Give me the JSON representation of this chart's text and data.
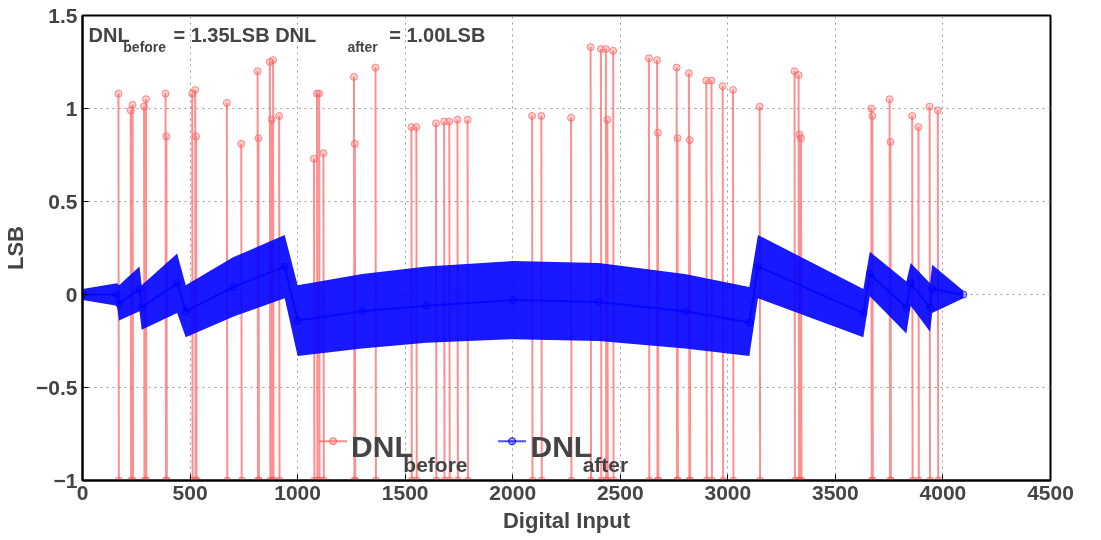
{
  "chart_data": {
    "type": "line",
    "xlabel": "Digital Input",
    "ylabel": "LSB",
    "annotations": [
      "DNL$_{before}$ = 1.35LSB  DNL$_{after}$ = 1.00LSB"
    ],
    "xlim": [
      0,
      4500
    ],
    "xticks": [
      0,
      500,
      1000,
      1500,
      2000,
      2500,
      3000,
      3500,
      4000,
      4500
    ],
    "ylim": [
      -1,
      1.5
    ],
    "yticks": [
      -1,
      -0.5,
      0,
      0.5,
      1,
      1.5
    ],
    "grid": true,
    "legend": "bottom",
    "marker": "circle",
    "line_style": "solid",
    "series": [
      {
        "name": "DNL$_{before}$",
        "color": "#ff6060",
        "x": [
          167,
          169,
          170,
          224,
          226,
          227,
          233,
          235,
          236,
          286,
          288,
          289,
          295,
          297,
          298,
          386,
          388,
          389,
          390,
          392,
          393,
          510,
          512,
          513,
          524,
          526,
          527,
          528,
          530,
          531,
          671,
          673,
          674,
          738,
          740,
          741,
          814,
          816,
          817,
          818,
          820,
          821,
          871,
          873,
          874,
          880,
          882,
          883,
          886,
          888,
          889,
          914,
          916,
          917,
          1076,
          1078,
          1079,
          1090,
          1092,
          1093,
          1100,
          1102,
          1103,
          1120,
          1122,
          1123,
          1262,
          1264,
          1265,
          1266,
          1268,
          1269,
          1362,
          1364,
          1365,
          1529,
          1531,
          1532,
          1552,
          1554,
          1555,
          1643,
          1645,
          1646,
          1681,
          1683,
          1684,
          1705,
          1707,
          1708,
          1743,
          1745,
          1746,
          1790,
          1792,
          1793,
          2090,
          2092,
          2093,
          2133,
          2135,
          2136,
          2271,
          2273,
          2274,
          2362,
          2364,
          2365,
          2410,
          2412,
          2413,
          2433,
          2435,
          2436,
          2440,
          2442,
          2443,
          2467,
          2469,
          2470,
          2633,
          2635,
          2636,
          2671,
          2673,
          2674,
          2675,
          2677,
          2678,
          2762,
          2764,
          2765,
          2766,
          2768,
          2769,
          2819,
          2821,
          2822,
          2823,
          2825,
          2826,
          2900,
          2902,
          2903,
          2924,
          2926,
          2927,
          2976,
          2978,
          2979,
          3024,
          3026,
          3027,
          3148,
          3150,
          3151,
          3310,
          3312,
          3313,
          3329,
          3331,
          3332,
          3333,
          3335,
          3336,
          3340,
          3342,
          3343,
          3667,
          3669,
          3670,
          3672,
          3674,
          3675,
          3752,
          3754,
          3755,
          3756,
          3758,
          3759,
          3857,
          3859,
          3860,
          3886,
          3888,
          3889,
          3938,
          3940,
          3941,
          3976,
          3978
        ],
        "values": [
          1.08,
          -1,
          null,
          0.99,
          -1,
          null,
          1.02,
          -1,
          null,
          1.01,
          -1,
          null,
          1.05,
          -1,
          null,
          1.08,
          -1,
          null,
          0.85,
          -1,
          null,
          1.08,
          -1,
          null,
          1.1,
          -1,
          null,
          0.85,
          -1,
          null,
          1.03,
          -1,
          null,
          0.81,
          -1,
          null,
          1.2,
          -1,
          null,
          0.84,
          -1,
          null,
          1.25,
          -1,
          null,
          0.94,
          -1,
          null,
          1.26,
          -1,
          null,
          0.96,
          -1,
          null,
          0.73,
          -1,
          null,
          1.08,
          -1,
          null,
          1.08,
          -1,
          null,
          0.76,
          -1,
          null,
          1.17,
          -1,
          null,
          0.81,
          -1,
          null,
          1.22,
          -1,
          null,
          0.9,
          -1,
          null,
          0.9,
          -1,
          null,
          0.92,
          -1,
          null,
          0.93,
          -1,
          null,
          0.93,
          -1,
          null,
          0.94,
          -1,
          null,
          0.94,
          -1,
          null,
          0.96,
          -1,
          null,
          0.96,
          -1,
          null,
          0.95,
          -1,
          null,
          1.33,
          -1,
          null,
          1.32,
          -1,
          null,
          1.32,
          -1,
          null,
          0.94,
          -1,
          null,
          1.31,
          -1,
          null,
          1.27,
          -1,
          null,
          1.26,
          -1,
          null,
          0.87,
          -1,
          null,
          1.22,
          -1,
          null,
          0.84,
          -1,
          null,
          1.19,
          -1,
          null,
          0.83,
          -1,
          null,
          1.15,
          -1,
          null,
          1.15,
          -1,
          null,
          1.12,
          -1,
          null,
          1.1,
          -1,
          null,
          1.01,
          -1,
          null,
          1.2,
          -1,
          null,
          1.18,
          -1,
          null,
          0.86,
          -1,
          null,
          0.84,
          -1,
          null,
          1.0,
          -1,
          null,
          0.96,
          -1,
          null,
          1.05,
          -1,
          null,
          0.82,
          -1,
          null,
          0.96,
          -1,
          null,
          0.9,
          -1,
          null,
          1.01,
          -1,
          null,
          0.99,
          -1
        ]
      },
      {
        "name": "DNL$_{after}$",
        "color": "#0000ff",
        "x": [
          0,
          160,
          170,
          265,
          275,
          440,
          480,
          700,
          940,
          1000,
          1300,
          1600,
          2000,
          2400,
          2800,
          3100,
          3140,
          3630,
          3660,
          3830,
          3850,
          3940,
          3950,
          4095
        ],
        "values": [
          0,
          0,
          -0.05,
          0.03,
          -0.07,
          0.06,
          -0.09,
          0.04,
          0.15,
          -0.14,
          -0.09,
          -0.06,
          -0.03,
          -0.04,
          -0.09,
          -0.15,
          0.15,
          -0.1,
          0.11,
          -0.07,
          0.06,
          -0.07,
          0.03,
          0
        ],
        "lower": [
          -0.03,
          -0.06,
          -0.14,
          -0.09,
          -0.19,
          -0.1,
          -0.23,
          -0.12,
          -0.02,
          -0.33,
          -0.29,
          -0.26,
          -0.24,
          -0.25,
          -0.29,
          -0.33,
          -0.02,
          -0.23,
          -0.01,
          -0.21,
          -0.06,
          -0.2,
          -0.1,
          -0.02
        ],
        "upper": [
          0.03,
          0.06,
          0.05,
          0.15,
          0.05,
          0.22,
          0.05,
          0.2,
          0.32,
          0.05,
          0.11,
          0.15,
          0.18,
          0.17,
          0.11,
          0.04,
          0.32,
          0.03,
          0.23,
          0.07,
          0.17,
          0.06,
          0.16,
          0.02
        ]
      }
    ]
  }
}
